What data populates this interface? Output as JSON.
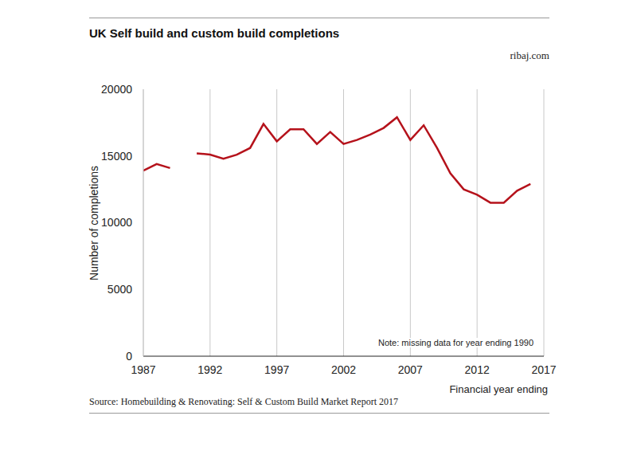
{
  "chart_data": {
    "type": "line",
    "title": "UK Self build and custom build completions",
    "credit": "ribaj.com",
    "y_label": "Number of completions",
    "x_label": "Financial year ending",
    "source": "Source: Homebuilding & Renovating: Self & Custom Build Market Report 2017",
    "note": "Note: missing data for year ending 1990",
    "x": [
      1987,
      1988,
      1989,
      1990,
      1991,
      1992,
      1993,
      1994,
      1995,
      1996,
      1997,
      1998,
      1999,
      2000,
      2001,
      2002,
      2003,
      2004,
      2005,
      2006,
      2007,
      2008,
      2009,
      2010,
      2011,
      2012,
      2013,
      2014,
      2015,
      2016
    ],
    "values": [
      13900,
      14400,
      14100,
      null,
      15200,
      15100,
      14800,
      15100,
      15600,
      17400,
      16100,
      17000,
      17000,
      15900,
      16800,
      15900,
      16200,
      16600,
      17100,
      17900,
      16200,
      17300,
      15600,
      13700,
      12500,
      12100,
      11500,
      11500,
      12400,
      12900
    ],
    "color": "#b5121b",
    "xlim": [
      1987,
      2017
    ],
    "xticks": [
      1987,
      1992,
      1997,
      2002,
      2007,
      2012,
      2017
    ],
    "ylim": [
      0,
      20000
    ],
    "yticks": [
      0,
      5000,
      10000,
      15000,
      20000
    ],
    "grid": "x"
  }
}
